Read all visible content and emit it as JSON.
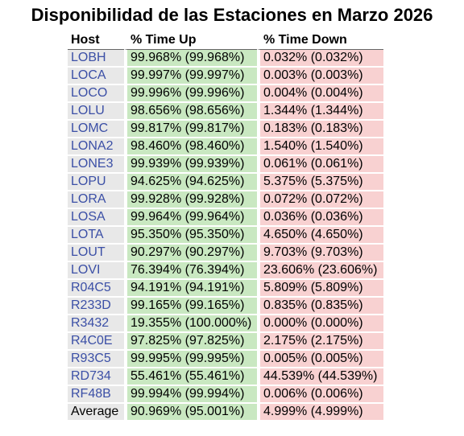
{
  "title": "Disponibilidad de las Estaciones en Marzo 2026",
  "headers": {
    "host": "Host",
    "time_up": "% Time Up",
    "time_down": "% Time Down"
  },
  "rows": [
    {
      "host": "LOBH",
      "up": "99.968% (99.968%)",
      "down": "0.032% (0.032%)"
    },
    {
      "host": "LOCA",
      "up": "99.997% (99.997%)",
      "down": "0.003% (0.003%)"
    },
    {
      "host": "LOCO",
      "up": "99.996% (99.996%)",
      "down": "0.004% (0.004%)"
    },
    {
      "host": "LOLU",
      "up": "98.656% (98.656%)",
      "down": "1.344% (1.344%)"
    },
    {
      "host": "LOMC",
      "up": "99.817% (99.817%)",
      "down": "0.183% (0.183%)"
    },
    {
      "host": "LONA2",
      "up": "98.460% (98.460%)",
      "down": "1.540% (1.540%)"
    },
    {
      "host": "LONE3",
      "up": "99.939% (99.939%)",
      "down": "0.061% (0.061%)"
    },
    {
      "host": "LOPU",
      "up": "94.625% (94.625%)",
      "down": "5.375% (5.375%)"
    },
    {
      "host": "LORA",
      "up": "99.928% (99.928%)",
      "down": "0.072% (0.072%)"
    },
    {
      "host": "LOSA",
      "up": "99.964% (99.964%)",
      "down": "0.036% (0.036%)"
    },
    {
      "host": "LOTA",
      "up": "95.350% (95.350%)",
      "down": "4.650% (4.650%)"
    },
    {
      "host": "LOUT",
      "up": "90.297% (90.297%)",
      "down": "9.703% (9.703%)"
    },
    {
      "host": "LOVI",
      "up": "76.394% (76.394%)",
      "down": "23.606% (23.606%)"
    },
    {
      "host": "R04C5",
      "up": "94.191% (94.191%)",
      "down": "5.809% (5.809%)"
    },
    {
      "host": "R233D",
      "up": "99.165% (99.165%)",
      "down": "0.835% (0.835%)"
    },
    {
      "host": "R3432",
      "up": "19.355% (100.000%)",
      "down": "0.000% (0.000%)"
    },
    {
      "host": "R4C0E",
      "up": "97.825% (97.825%)",
      "down": "2.175% (2.175%)"
    },
    {
      "host": "R93C5",
      "up": "99.995% (99.995%)",
      "down": "0.005% (0.005%)"
    },
    {
      "host": "RD734",
      "up": "55.461% (55.461%)",
      "down": "44.539% (44.539%)"
    },
    {
      "host": "RF48B",
      "up": "99.994% (99.994%)",
      "down": "0.006% (0.006%)"
    }
  ],
  "average": {
    "label": "Average",
    "up": "90.969% (95.001%)",
    "down": "4.999% (4.999%)"
  },
  "colors": {
    "host_bg": "#e8e8e8",
    "up_bg": "#c9e8c1",
    "down_bg": "#f8d1d1",
    "link": "#3b4fa6"
  }
}
